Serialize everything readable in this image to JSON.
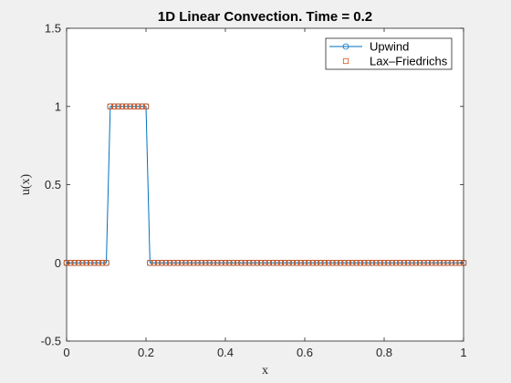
{
  "chart_data": {
    "type": "line",
    "title": "1D Linear Convection. Time = 0.2",
    "xlabel": "x",
    "ylabel": "u(x)",
    "xlim": [
      0,
      1
    ],
    "ylim": [
      -0.5,
      1.5
    ],
    "xticks": [
      0,
      0.2,
      0.4,
      0.6,
      0.8,
      1
    ],
    "xtick_labels": [
      "0",
      "0.2",
      "0.4",
      "0.6",
      "0.8",
      "1"
    ],
    "yticks": [
      -0.5,
      0,
      0.5,
      1,
      1.5
    ],
    "ytick_labels": [
      "-0.5",
      "0",
      "0.5",
      "1",
      "1.5"
    ],
    "grid": false,
    "legend_position": "top-right",
    "x_step": 0.01,
    "series": [
      {
        "name": "Upwind",
        "color": "#0072BD",
        "marker": "circle",
        "line": true,
        "nonzero_range": [
          0.11,
          0.2
        ],
        "nonzero_value": 1,
        "x_start": 0,
        "x_end": 1,
        "baseline": 0
      },
      {
        "name": "Lax–Friedrichs",
        "color": "#D95319",
        "marker": "square",
        "line": false,
        "nonzero_range": [
          0.11,
          0.2
        ],
        "nonzero_value": 1,
        "x_start": 0,
        "x_end": 1,
        "baseline": 0
      }
    ]
  }
}
